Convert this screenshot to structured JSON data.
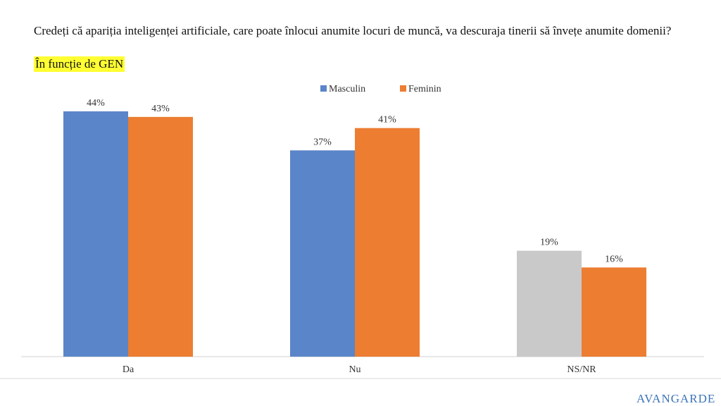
{
  "chart_data": {
    "type": "bar",
    "title": "Credeți că apariția inteligenței artificiale, care poate înlocui anumite locuri de muncă, va descuraja tinerii să învețe anumite domenii?",
    "subtitle": "În funcție de GEN",
    "categories": [
      "Da",
      "Nu",
      "NS/NR"
    ],
    "series": [
      {
        "name": "Masculin",
        "color": "#5b85c9",
        "colors": [
          "#5b85c9",
          "#5b85c9",
          "#c9c9c9"
        ],
        "values": [
          44,
          37,
          19
        ],
        "value_labels": [
          "44%",
          "37%",
          "19%"
        ]
      },
      {
        "name": "Feminin",
        "color": "#ed7d31",
        "values": [
          43,
          41,
          16
        ],
        "value_labels": [
          "43%",
          "41%",
          "16%"
        ]
      }
    ],
    "legend": "top"
  },
  "logo": "AVANGARDE"
}
